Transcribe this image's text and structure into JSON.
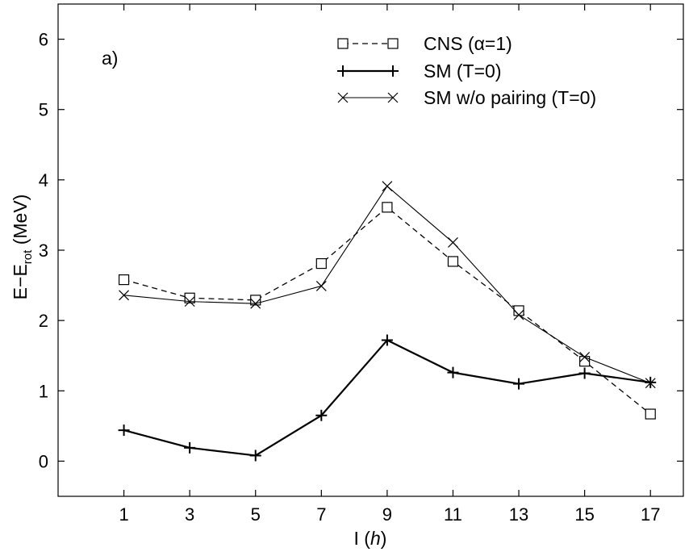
{
  "chart_data": {
    "type": "line",
    "panel_label": "a)",
    "xlabel": {
      "main": "I (",
      "unit": "h",
      "close": ")"
    },
    "ylabel": {
      "main": "E−E",
      "sub": "rot",
      "unit": " (MeV)"
    },
    "xlim": [
      -1,
      18
    ],
    "ylim": [
      -0.5,
      6.5
    ],
    "x": [
      1,
      3,
      5,
      7,
      9,
      11,
      13,
      15,
      17
    ],
    "x_ticks": [
      "1",
      "3",
      "5",
      "7",
      "9",
      "11",
      "13",
      "15",
      "17"
    ],
    "y_ticks": [
      "0",
      "1",
      "2",
      "3",
      "4",
      "5",
      "6"
    ],
    "grid": false,
    "legend_position": "top-right",
    "series": [
      {
        "name": "CNS (α=1)",
        "marker": "square",
        "dash": "dashed",
        "values": [
          2.58,
          2.32,
          2.29,
          2.81,
          3.61,
          2.84,
          2.14,
          1.42,
          0.67
        ]
      },
      {
        "name": "SM (T=0)",
        "marker": "plus",
        "dash": "solid-thick",
        "values": [
          0.44,
          0.19,
          0.08,
          0.65,
          1.72,
          1.26,
          1.1,
          1.25,
          1.12
        ]
      },
      {
        "name": "SM w/o pairing (T=0)",
        "marker": "x",
        "dash": "solid-thin",
        "values": [
          2.36,
          2.27,
          2.24,
          2.49,
          3.91,
          3.11,
          2.08,
          1.48,
          1.11
        ]
      }
    ]
  }
}
